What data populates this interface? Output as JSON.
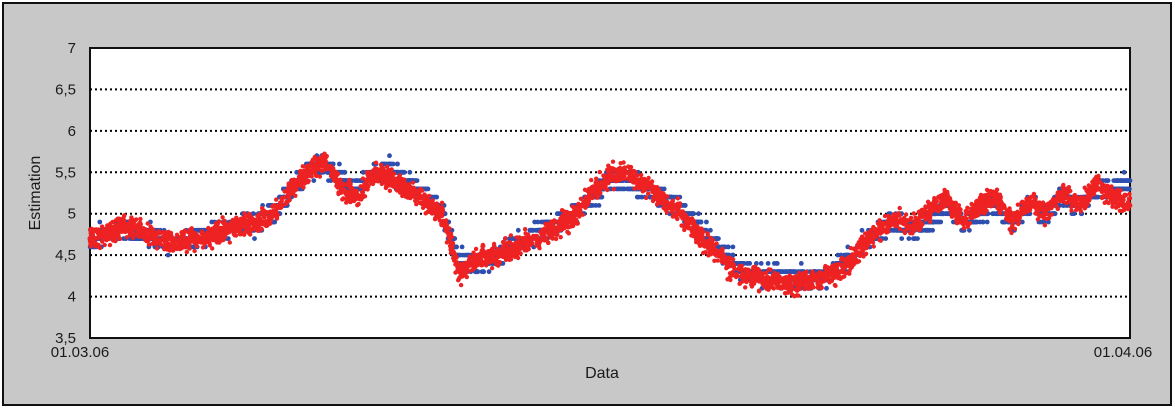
{
  "chart_data": {
    "type": "scatter",
    "title": "",
    "xlabel": "Data",
    "ylabel": "Estimation",
    "xlim": [
      "2006-03-01",
      "2006-04-01"
    ],
    "x_tick_labels": [
      "01.03.06",
      "01.04.06"
    ],
    "ylim": [
      3.5,
      7
    ],
    "y_ticks": [
      3.5,
      4,
      4.5,
      5,
      5.5,
      6,
      6.5,
      7
    ],
    "y_tick_labels": [
      "3,5",
      "4",
      "4,5",
      "5",
      "5,5",
      "6",
      "6,5",
      "7"
    ],
    "grid": {
      "horizontal": true,
      "style": "dotted",
      "vertical": false
    },
    "legend": "none",
    "colors": {
      "panel_background": "#c8c8c8",
      "plot_background": "#ffffff",
      "series_blue": "#2f4fb0",
      "series_red": "#ee2222",
      "grid": "#000000",
      "frame": "#111111"
    },
    "series": [
      {
        "color": "#2f4fb0",
        "marker": "dot",
        "x": [
          0,
          0.5,
          1,
          1.5,
          2,
          2.5,
          3,
          3.5,
          4,
          4.5,
          5,
          5.5,
          6,
          6.5,
          7,
          7.5,
          8,
          8.5,
          9,
          9.5,
          10,
          10.5,
          11,
          11.5,
          12,
          12.5,
          13,
          13.5,
          14,
          14.5,
          15,
          15.5,
          16,
          16.5,
          17,
          17.5,
          18,
          18.5,
          19,
          19.5,
          20,
          20.5,
          21,
          21.5,
          22,
          22.5,
          23,
          23.5,
          24,
          24.5,
          25,
          25.5,
          26,
          26.5,
          27,
          27.5,
          28,
          28.5,
          29,
          29.5,
          30,
          30.5,
          31
        ],
        "y": [
          4.7,
          4.75,
          4.8,
          4.75,
          4.7,
          4.65,
          4.7,
          4.75,
          4.8,
          4.85,
          4.9,
          5.0,
          5.3,
          5.5,
          5.6,
          5.4,
          5.3,
          5.5,
          5.5,
          5.4,
          5.2,
          5.05,
          4.4,
          4.4,
          4.45,
          4.6,
          4.7,
          4.8,
          4.9,
          5.0,
          5.2,
          5.4,
          5.4,
          5.3,
          5.2,
          5.1,
          4.9,
          4.7,
          4.5,
          4.3,
          4.25,
          4.25,
          4.2,
          4.2,
          4.25,
          4.4,
          4.6,
          4.8,
          4.9,
          4.8,
          4.9,
          5.1,
          4.9,
          5.0,
          5.1,
          4.9,
          5.1,
          5.0,
          5.2,
          5.1,
          5.3,
          5.3,
          5.4
        ]
      },
      {
        "color": "#ee2222",
        "marker": "dot",
        "x": [
          0,
          0.5,
          1,
          1.5,
          2,
          2.5,
          3,
          3.5,
          4,
          4.5,
          5,
          5.5,
          6,
          6.5,
          7,
          7.5,
          8,
          8.5,
          9,
          9.5,
          10,
          10.5,
          11,
          11.5,
          12,
          12.5,
          13,
          13.5,
          14,
          14.5,
          15,
          15.5,
          16,
          16.5,
          17,
          17.5,
          18,
          18.5,
          19,
          19.5,
          20,
          20.5,
          21,
          21.5,
          22,
          22.5,
          23,
          23.5,
          24,
          24.5,
          25,
          25.5,
          26,
          26.5,
          27,
          27.5,
          28,
          28.5,
          29,
          29.5,
          30,
          30.5,
          31
        ],
        "y": [
          4.7,
          4.75,
          4.85,
          4.8,
          4.7,
          4.65,
          4.7,
          4.7,
          4.8,
          4.85,
          4.9,
          5.0,
          5.3,
          5.5,
          5.65,
          5.3,
          5.2,
          5.5,
          5.4,
          5.3,
          5.15,
          5.0,
          4.3,
          4.45,
          4.5,
          4.55,
          4.65,
          4.75,
          4.85,
          5.0,
          5.3,
          5.45,
          5.5,
          5.35,
          5.2,
          5.05,
          4.8,
          4.6,
          4.4,
          4.25,
          4.2,
          4.2,
          4.15,
          4.2,
          4.25,
          4.35,
          4.6,
          4.8,
          4.95,
          4.85,
          5.0,
          5.2,
          4.9,
          5.1,
          5.2,
          4.9,
          5.15,
          5.0,
          5.25,
          5.1,
          5.35,
          5.2,
          5.1
        ]
      }
    ]
  }
}
